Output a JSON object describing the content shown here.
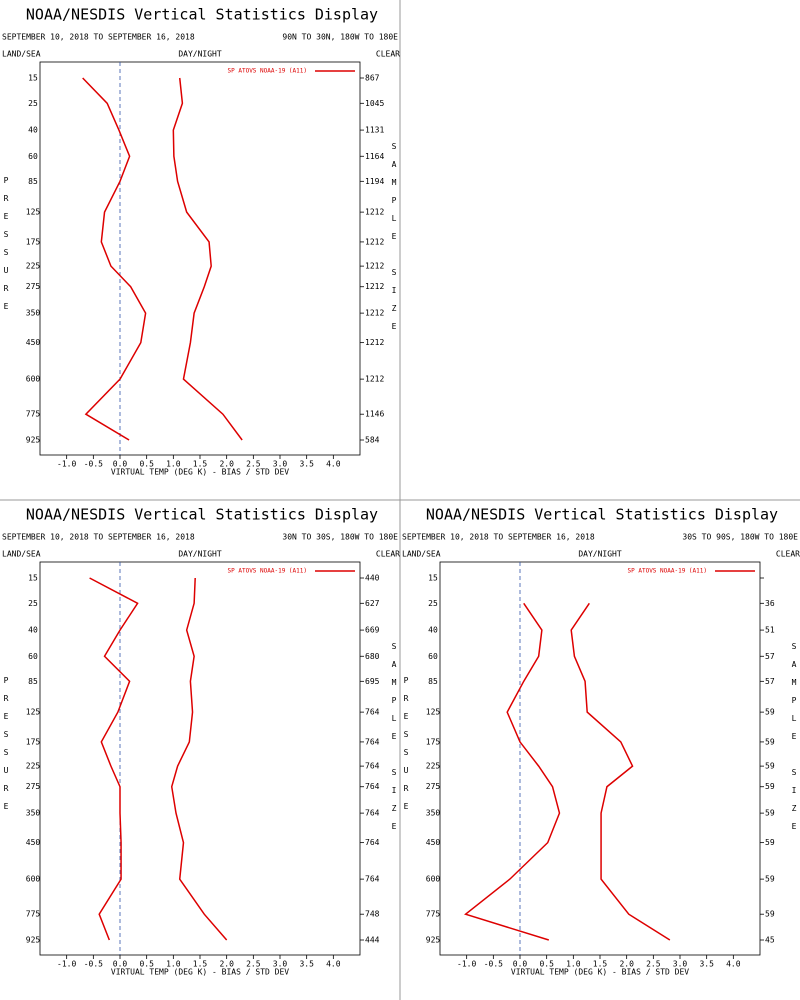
{
  "chart_data": [
    {
      "type": "line",
      "title": "NOAA/NESDIS Vertical Statistics Display",
      "date_range": "SEPTEMBER 10, 2018 TO SEPTEMBER 16, 2018",
      "region": "90N TO 30N, 180W TO 180E",
      "land_sea_label": "LAND/SEA",
      "day_night_label": "DAY/NIGHT",
      "cloud_label": "CLEAR",
      "ylabel": "PRESSURE",
      "y2label": "SAMPLE SIZE",
      "xlabel": "VIRTUAL TEMP (DEG K) - BIAS / STD DEV",
      "xlim": [
        -1.5,
        4.5
      ],
      "xticks": [
        {
          "value": -1,
          "label": "-1.0"
        },
        {
          "value": -0.5,
          "label": "-0.5"
        },
        {
          "value": 0,
          "label": "0.0"
        },
        {
          "value": 0.5,
          "label": "0.5"
        },
        {
          "value": 1,
          "label": "1.0"
        },
        {
          "value": 1.5,
          "label": "1.5"
        },
        {
          "value": 2,
          "label": "2.0"
        },
        {
          "value": 2.5,
          "label": "2.5"
        },
        {
          "value": 3,
          "label": "3.0"
        },
        {
          "value": 3.5,
          "label": "3.5"
        },
        {
          "value": 4,
          "label": "4.0"
        }
      ],
      "pressure": [
        15,
        25,
        40,
        60,
        85,
        125,
        175,
        225,
        275,
        350,
        450,
        600,
        775,
        925
      ],
      "sample_size": [
        867,
        1045,
        1131,
        1164,
        1194,
        1212,
        1212,
        1212,
        1212,
        1212,
        1212,
        1212,
        1146,
        584
      ],
      "series": [
        {
          "name": "SP ATOVS NOAA-19 (A11)",
          "color": "#dd0000",
          "bias": [
            -0.7,
            -0.24,
            -0.02,
            0.18,
            0.0,
            -0.29,
            -0.35,
            -0.17,
            0.2,
            0.48,
            0.39,
            0.0,
            -0.64,
            0.17
          ],
          "std_dev": [
            1.12,
            1.17,
            1.0,
            1.01,
            1.08,
            1.25,
            1.67,
            1.71,
            1.58,
            1.39,
            1.32,
            1.19,
            1.93,
            2.29
          ]
        }
      ]
    },
    {
      "type": "line",
      "title": "NOAA/NESDIS Vertical Statistics Display",
      "date_range": "SEPTEMBER 10, 2018 TO SEPTEMBER 16, 2018",
      "region": "30N TO 30S, 180W TO 180E",
      "land_sea_label": "LAND/SEA",
      "day_night_label": "DAY/NIGHT",
      "cloud_label": "CLEAR",
      "ylabel": "PRESSURE",
      "y2label": "SAMPLE SIZE",
      "xlabel": "VIRTUAL TEMP (DEG K) - BIAS / STD DEV",
      "xlim": [
        -1.5,
        4.5
      ],
      "xticks": [
        {
          "value": -1,
          "label": "-1.0"
        },
        {
          "value": -0.5,
          "label": "-0.5"
        },
        {
          "value": 0,
          "label": "0.0"
        },
        {
          "value": 0.5,
          "label": "0.5"
        },
        {
          "value": 1,
          "label": "1.0"
        },
        {
          "value": 1.5,
          "label": "1.5"
        },
        {
          "value": 2,
          "label": "2.0"
        },
        {
          "value": 2.5,
          "label": "2.5"
        },
        {
          "value": 3,
          "label": "3.0"
        },
        {
          "value": 3.5,
          "label": "3.5"
        },
        {
          "value": 4,
          "label": "4.0"
        }
      ],
      "pressure": [
        15,
        25,
        40,
        60,
        85,
        125,
        175,
        225,
        275,
        350,
        450,
        600,
        775,
        925
      ],
      "sample_size": [
        440,
        627,
        669,
        680,
        695,
        764,
        764,
        764,
        764,
        764,
        764,
        764,
        748,
        444
      ],
      "series": [
        {
          "name": "SP ATOVS NOAA-19 (A11)",
          "color": "#dd0000",
          "bias": [
            -0.57,
            0.33,
            0.0,
            -0.29,
            0.18,
            -0.04,
            -0.35,
            -0.17,
            0.0,
            0.0,
            0.02,
            0.02,
            -0.39,
            -0.2
          ],
          "std_dev": [
            1.41,
            1.39,
            1.25,
            1.39,
            1.32,
            1.36,
            1.3,
            1.08,
            0.97,
            1.05,
            1.19,
            1.12,
            1.58,
            2.0
          ]
        }
      ]
    },
    {
      "type": "line",
      "title": "NOAA/NESDIS Vertical Statistics Display",
      "date_range": "SEPTEMBER 10, 2018 TO SEPTEMBER 16, 2018",
      "region": "30S TO 90S, 180W TO 180E",
      "land_sea_label": "LAND/SEA",
      "day_night_label": "DAY/NIGHT",
      "cloud_label": "CLEAR",
      "ylabel": "PRESSURE",
      "y2label": "SAMPLE SIZE",
      "xlabel": "VIRTUAL TEMP (DEG K) - BIAS / STD DEV",
      "xlim": [
        -1.5,
        4.5
      ],
      "xticks": [
        {
          "value": -1,
          "label": "-1.0"
        },
        {
          "value": -0.5,
          "label": "-0.5"
        },
        {
          "value": 0,
          "label": "0.0"
        },
        {
          "value": 0.5,
          "label": "0.5"
        },
        {
          "value": 1,
          "label": "1.0"
        },
        {
          "value": 1.5,
          "label": "1.5"
        },
        {
          "value": 2,
          "label": "2.0"
        },
        {
          "value": 2.5,
          "label": "2.5"
        },
        {
          "value": 3,
          "label": "3.0"
        },
        {
          "value": 3.5,
          "label": "3.5"
        },
        {
          "value": 4,
          "label": "4.0"
        }
      ],
      "pressure": [
        15,
        25,
        40,
        60,
        85,
        125,
        175,
        225,
        275,
        350,
        450,
        600,
        775,
        925
      ],
      "sample_size": [
        null,
        36,
        51,
        57,
        57,
        59,
        59,
        59,
        59,
        59,
        59,
        59,
        59,
        45
      ],
      "series": [
        {
          "name": "SP ATOVS NOAA-19 (A11)",
          "color": "#dd0000",
          "bias": [
            null,
            0.07,
            0.41,
            0.35,
            0.07,
            -0.24,
            0.0,
            0.35,
            0.61,
            0.74,
            0.52,
            -0.19,
            -1.02,
            0.54
          ],
          "std_dev": [
            null,
            1.3,
            0.96,
            1.02,
            1.22,
            1.26,
            1.89,
            2.11,
            1.63,
            1.52,
            1.52,
            1.52,
            2.04,
            2.81
          ]
        }
      ]
    }
  ]
}
